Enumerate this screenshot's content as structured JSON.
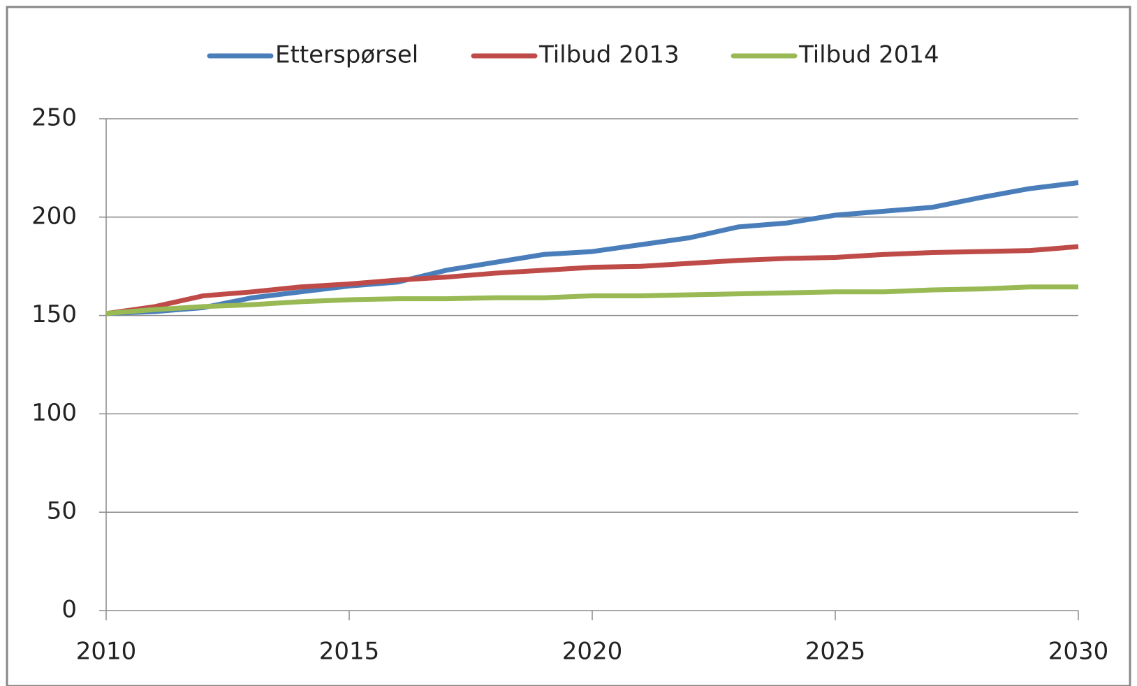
{
  "chart_data": {
    "type": "line",
    "x": [
      2010,
      2011,
      2012,
      2013,
      2014,
      2015,
      2016,
      2017,
      2018,
      2019,
      2020,
      2021,
      2022,
      2023,
      2024,
      2025,
      2026,
      2027,
      2028,
      2029,
      2030
    ],
    "series": [
      {
        "name": "Etterspørsel",
        "color": "#4a7ebb",
        "values": [
          151,
          152,
          154,
          159,
          162,
          165,
          167,
          173,
          177,
          181,
          182.5,
          186,
          189.5,
          195,
          197,
          201,
          203,
          205,
          210,
          214.5,
          217.5
        ]
      },
      {
        "name": "Tilbud 2013",
        "color": "#be4b48",
        "values": [
          151,
          154.5,
          160,
          162,
          164.5,
          166,
          168,
          169.5,
          171.5,
          173,
          174.5,
          175,
          176.5,
          178,
          179,
          179.5,
          181,
          182,
          182.5,
          183,
          185
        ]
      },
      {
        "name": "Tilbud 2014",
        "color": "#98b954",
        "values": [
          151,
          153,
          154.5,
          155.5,
          157,
          158,
          158.5,
          158.5,
          159,
          159,
          160,
          160,
          160.5,
          161,
          161.5,
          162,
          162,
          163,
          163.5,
          164.5,
          164.5
        ]
      }
    ],
    "xlim": [
      2010,
      2030
    ],
    "xticks": [
      2010,
      2015,
      2020,
      2025,
      2030
    ],
    "ylim": [
      0,
      250
    ],
    "yticks": [
      0,
      50,
      100,
      150,
      200,
      250
    ],
    "grid": true,
    "legend": "top"
  }
}
